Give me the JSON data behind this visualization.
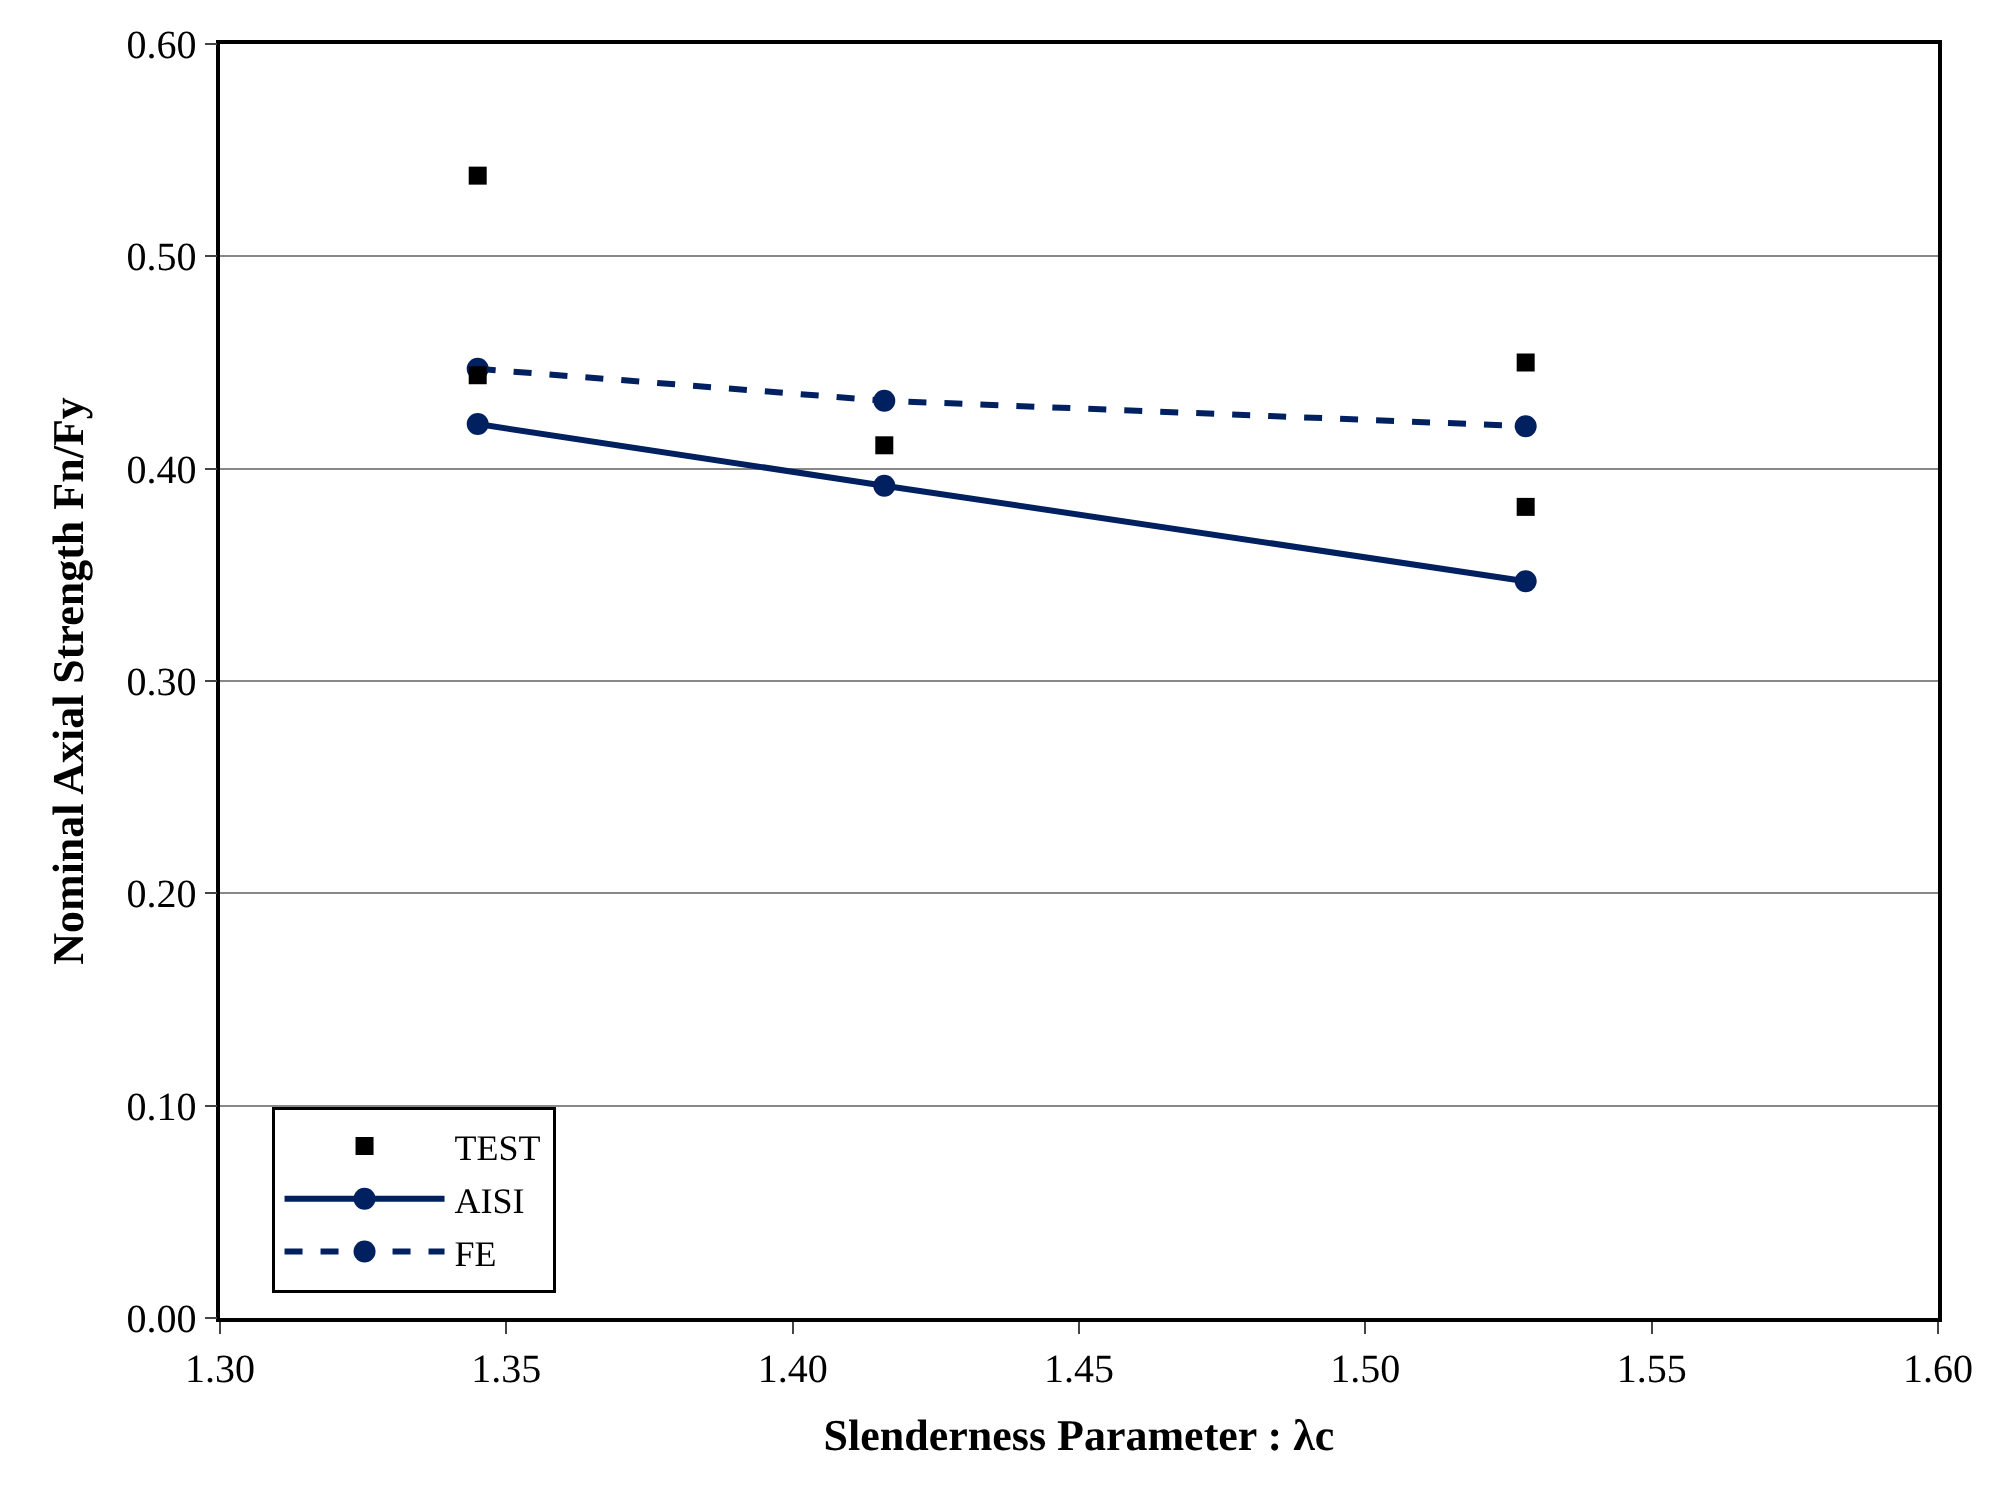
{
  "chart_data": {
    "type": "line",
    "xlabel": "Slenderness Parameter : λc",
    "ylabel": "Nominal Axial Strength Fn/Fy",
    "xlim": [
      1.3,
      1.6
    ],
    "xticks": [
      {
        "value": 1.3,
        "label": "1.30"
      },
      {
        "value": 1.35,
        "label": "1.35"
      },
      {
        "value": 1.4,
        "label": "1.40"
      },
      {
        "value": 1.45,
        "label": "1.45"
      },
      {
        "value": 1.5,
        "label": "1.50"
      },
      {
        "value": 1.55,
        "label": "1.55"
      },
      {
        "value": 1.6,
        "label": "1.60"
      }
    ],
    "ylim": [
      0,
      0.6
    ],
    "yticks": [
      {
        "value": 0,
        "label": "0.00"
      },
      {
        "value": 0.1,
        "label": "0.10"
      },
      {
        "value": 0.2,
        "label": "0.20"
      },
      {
        "value": 0.3,
        "label": "0.30"
      },
      {
        "value": 0.4,
        "label": "0.40"
      },
      {
        "value": 0.5,
        "label": "0.50"
      },
      {
        "value": 0.6,
        "label": "0.60"
      }
    ],
    "grid": "y",
    "legend": "bottom left",
    "series": [
      {
        "name": "TEST",
        "type": "scatter",
        "marker": "square",
        "color": "#000000",
        "x": [
          1.345,
          1.345,
          1.416,
          1.528,
          1.528
        ],
        "values": [
          0.538,
          0.444,
          0.411,
          0.45,
          0.382
        ]
      },
      {
        "name": "AISI",
        "marker": "circle",
        "line_style": "solid",
        "color": "#002060",
        "x": [
          1.345,
          1.416,
          1.528
        ],
        "values": [
          0.421,
          0.392,
          0.347
        ]
      },
      {
        "name": "FE",
        "marker": "circle",
        "line_style": "dashed",
        "color": "#002060",
        "x": [
          1.345,
          1.416,
          1.528
        ],
        "values": [
          0.447,
          0.432,
          0.42
        ]
      }
    ]
  }
}
